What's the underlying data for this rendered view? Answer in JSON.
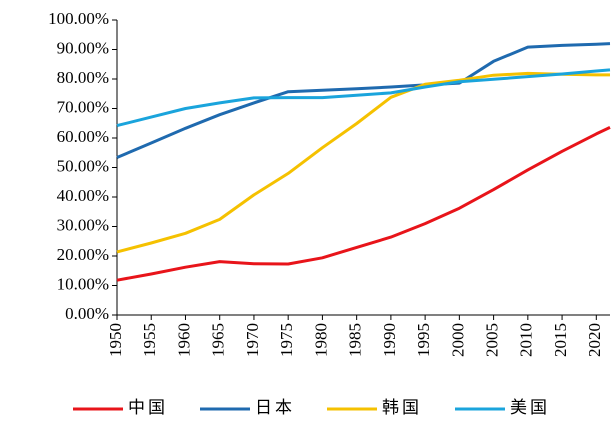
{
  "chart_data": {
    "type": "line",
    "x": [
      1950,
      1955,
      1960,
      1965,
      1970,
      1975,
      1980,
      1985,
      1990,
      1995,
      2000,
      2005,
      2010,
      2015,
      2020,
      2022
    ],
    "xlim": [
      1950,
      2022
    ],
    "xticks": [
      1950,
      1955,
      1960,
      1965,
      1970,
      1975,
      1980,
      1985,
      1990,
      1995,
      2000,
      2005,
      2010,
      2015,
      2020
    ],
    "ylim": [
      0,
      100
    ],
    "yticks": [
      {
        "value": 0,
        "label": "0.00%"
      },
      {
        "value": 10,
        "label": "10.00%"
      },
      {
        "value": 20,
        "label": "20.00%"
      },
      {
        "value": 30,
        "label": "30.00%"
      },
      {
        "value": 40,
        "label": "40.00%"
      },
      {
        "value": 50,
        "label": "50.00%"
      },
      {
        "value": 60,
        "label": "60.00%"
      },
      {
        "value": 70,
        "label": "70.00%"
      },
      {
        "value": 80,
        "label": "80.00%"
      },
      {
        "value": 90,
        "label": "90.00%"
      },
      {
        "value": 100,
        "label": "100.00%"
      }
    ],
    "legend": "bottom",
    "series": [
      {
        "name": "中国",
        "color": "#e8141a",
        "values": [
          11.8,
          13.9,
          16.2,
          18.1,
          17.4,
          17.3,
          19.4,
          22.9,
          26.4,
          31.0,
          36.2,
          42.5,
          49.2,
          55.5,
          61.4,
          63.6
        ]
      },
      {
        "name": "日本",
        "color": "#1f6aaf",
        "values": [
          53.4,
          58.3,
          63.3,
          67.9,
          71.9,
          75.7,
          76.2,
          76.7,
          77.3,
          78.0,
          78.6,
          86.0,
          90.8,
          91.4,
          91.8,
          92.0
        ]
      },
      {
        "name": "韩国",
        "color": "#f5c100",
        "values": [
          21.4,
          24.4,
          27.7,
          32.4,
          40.7,
          48.0,
          56.7,
          64.9,
          73.8,
          78.2,
          79.6,
          81.3,
          81.9,
          81.6,
          81.4,
          81.4
        ]
      },
      {
        "name": "美国",
        "color": "#1aa4dc",
        "values": [
          64.2,
          67.1,
          70.0,
          71.9,
          73.6,
          73.7,
          73.7,
          74.5,
          75.3,
          77.3,
          79.1,
          79.9,
          80.8,
          81.7,
          82.7,
          83.1
        ]
      }
    ]
  }
}
